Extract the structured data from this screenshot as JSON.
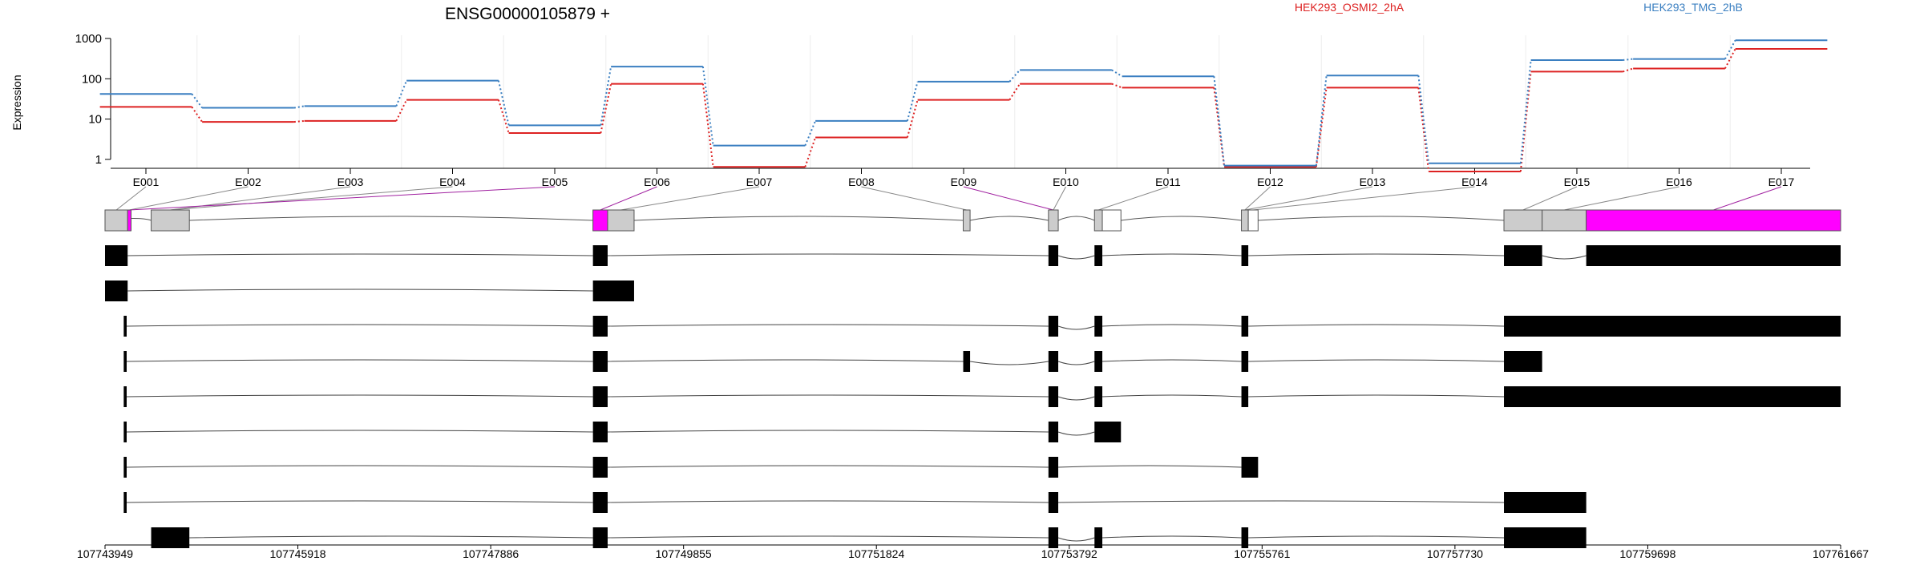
{
  "title": "ENSG00000105879 +",
  "ylabel": "Expression",
  "colors": {
    "series_a": "#dd2222",
    "series_b": "#3a7fc1",
    "highlight": "#ff00ff",
    "exon_grey": "#cccccc",
    "transcript": "#000000"
  },
  "chart_data": {
    "type": "line",
    "title": "ENSG00000105879 +",
    "ylabel": "Expression",
    "yscale": "log",
    "ylim": [
      0.6,
      1000
    ],
    "yticks": [
      "1",
      "10",
      "100",
      "1000"
    ],
    "categories": [
      "E001",
      "E002",
      "E003",
      "E004",
      "E005",
      "E006",
      "E007",
      "E008",
      "E009",
      "E010",
      "E011",
      "E012",
      "E013",
      "E014",
      "E015",
      "E016",
      "E017"
    ],
    "series": [
      {
        "name": "HEK293_OSMI2_2hA",
        "color": "#dd2222",
        "values": [
          20,
          8.5,
          9,
          30,
          4.5,
          75,
          0.65,
          3.5,
          30,
          75,
          60,
          0.65,
          60,
          0.5,
          150,
          180,
          550
        ]
      },
      {
        "name": "HEK293_TMG_2hB",
        "color": "#3a7fc1",
        "values": [
          42,
          19,
          21,
          90,
          7,
          200,
          2.2,
          9,
          85,
          165,
          115,
          0.7,
          120,
          0.8,
          290,
          310,
          900
        ]
      }
    ],
    "genomic_axis": {
      "range": [
        107743949,
        107761667
      ],
      "ticks": [
        "107743949",
        "107745918",
        "107747886",
        "107749855",
        "107751824",
        "107753792",
        "107755761",
        "107757730",
        "107759698",
        "107761667"
      ]
    }
  },
  "legend": [
    {
      "label": "HEK293_OSMI2_2hA",
      "color": "#dd2222"
    },
    {
      "label": "HEK293_TMG_2hB",
      "color": "#3a7fc1"
    }
  ]
}
